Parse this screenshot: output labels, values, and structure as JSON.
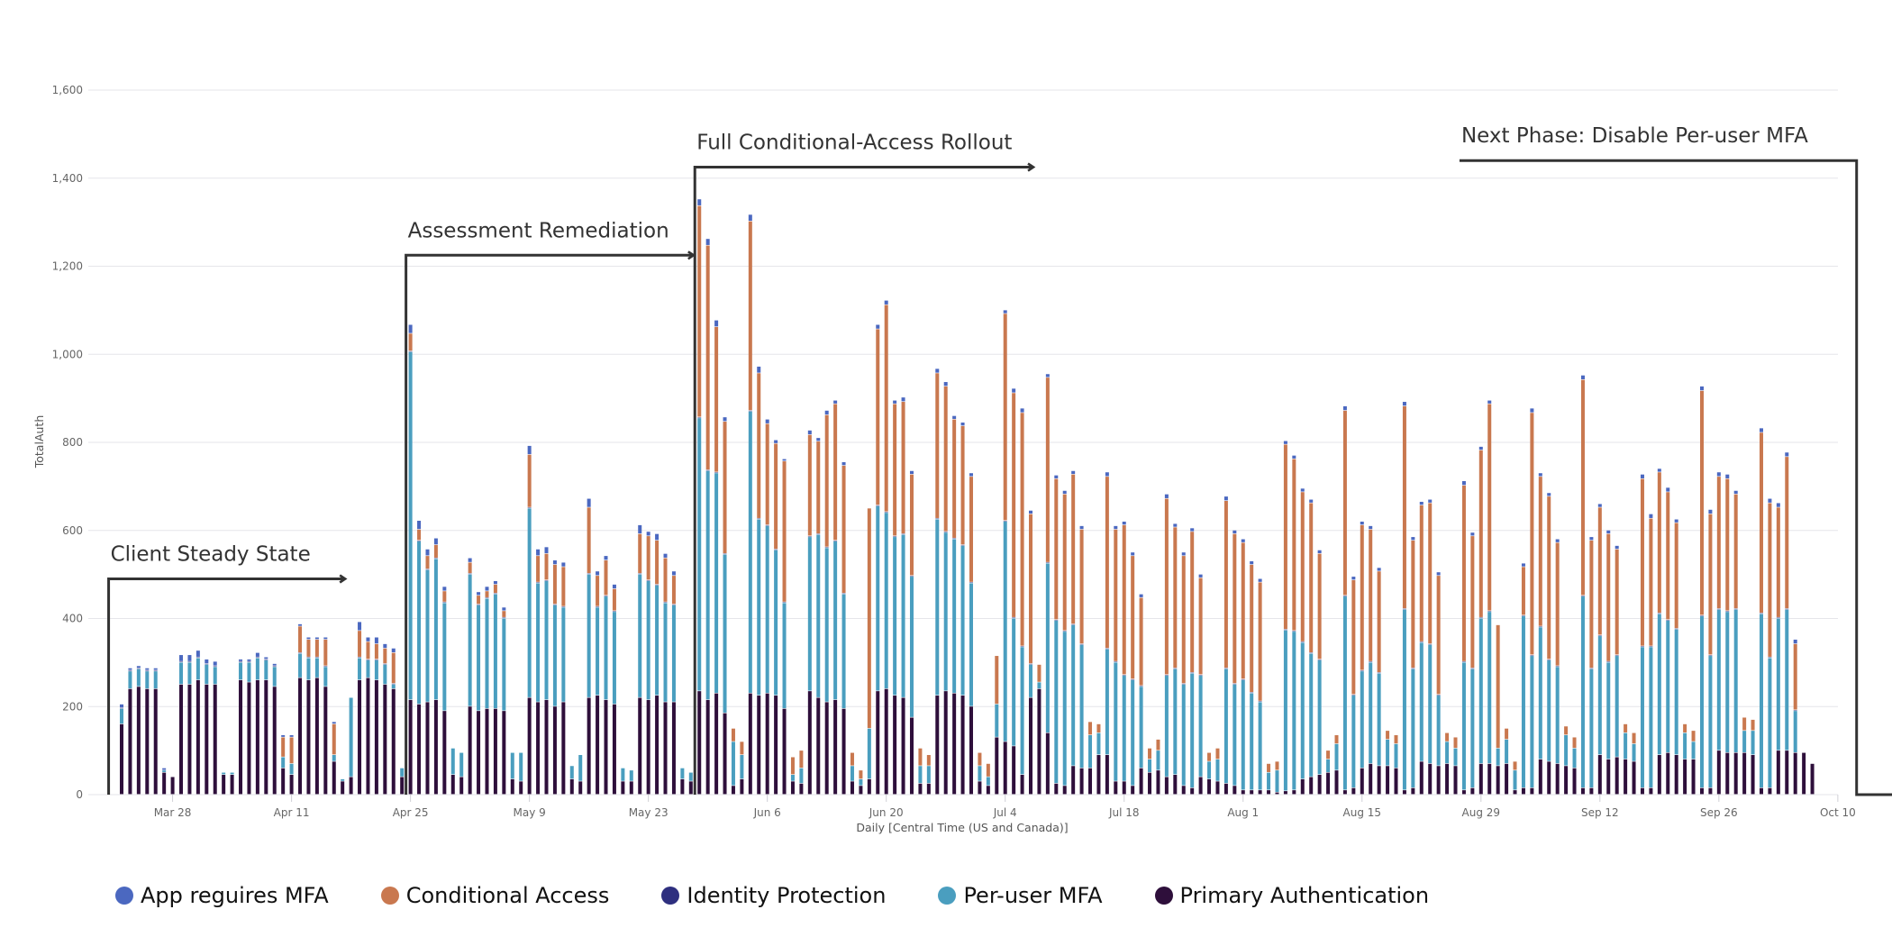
{
  "chart_data": {
    "type": "bar",
    "stacked": true,
    "title": "",
    "xlabel": "Daily [Central Time (US and Canada)]",
    "ylabel": "TotalAuth",
    "ylim": [
      0,
      1600
    ],
    "yticks": [
      0,
      200,
      400,
      600,
      800,
      1000,
      1200,
      1400,
      1600
    ],
    "ytick_labels": [
      "0",
      "200",
      "400",
      "600",
      "800",
      "1,000",
      "1,200",
      "1,400",
      "1,600"
    ],
    "grid": true,
    "start_date": "Mar 22",
    "xtick_labels": [
      "Mar 28",
      "Apr 11",
      "Apr 25",
      "May 9",
      "May 23",
      "Jun 6",
      "Jun 20",
      "Jul 4",
      "Jul 18",
      "Aug 1",
      "Aug 15",
      "Aug 29",
      "Sep 12",
      "Sep 26",
      "Oct 10"
    ],
    "xtick_day_index": [
      6,
      20,
      34,
      48,
      62,
      76,
      90,
      104,
      118,
      132,
      146,
      160,
      174,
      188,
      202
    ],
    "legend_position": "bottom-left",
    "series": [
      {
        "name": "Primary Authentication",
        "color": "#2e0f3b",
        "values": [
          160,
          240,
          245,
          240,
          240,
          50,
          40,
          250,
          250,
          260,
          250,
          250,
          45,
          45,
          260,
          255,
          260,
          260,
          245,
          60,
          45,
          265,
          260,
          265,
          245,
          75,
          30,
          40,
          260,
          265,
          260,
          250,
          240,
          40,
          215,
          205,
          210,
          215,
          190,
          45,
          40,
          200,
          190,
          195,
          195,
          190,
          35,
          30,
          220,
          210,
          215,
          200,
          210,
          35,
          30,
          220,
          225,
          215,
          205,
          30,
          30,
          220,
          215,
          225,
          210,
          210,
          35,
          30,
          235,
          215,
          230,
          185,
          20,
          35,
          230,
          225,
          230,
          225,
          195,
          30,
          25,
          235,
          220,
          210,
          215,
          195,
          30,
          20,
          35,
          235,
          240,
          225,
          220,
          175,
          25,
          25,
          225,
          235,
          230,
          225,
          200,
          30,
          20,
          130,
          120,
          110,
          45,
          220,
          240,
          140,
          25,
          20,
          65,
          60,
          60,
          90,
          90,
          30,
          30,
          20,
          60,
          50,
          55,
          40,
          45,
          20,
          15,
          40,
          35,
          30,
          25,
          20,
          10,
          10,
          10,
          10,
          5,
          8,
          10,
          35,
          40,
          45,
          50,
          55,
          10,
          15,
          60,
          70,
          65,
          65,
          60,
          10,
          15,
          75,
          70,
          65,
          70,
          65,
          10,
          15,
          70,
          70,
          65,
          70,
          10,
          15,
          15,
          80,
          75,
          70,
          65,
          60,
          15,
          15,
          90,
          80,
          85,
          80,
          75,
          15,
          15,
          90,
          95,
          90,
          80,
          80,
          15,
          15,
          100,
          95,
          95,
          95,
          90,
          15,
          15,
          100,
          100,
          95,
          95,
          70
        ]
      },
      {
        "name": "Per-user MFA",
        "color": "#4a9ebf",
        "values": [
          35,
          40,
          40,
          40,
          40,
          5,
          0,
          50,
          50,
          50,
          45,
          40,
          5,
          5,
          40,
          45,
          50,
          45,
          45,
          25,
          25,
          55,
          50,
          45,
          45,
          15,
          5,
          180,
          50,
          40,
          45,
          45,
          10,
          20,
          790,
          370,
          300,
          320,
          245,
          60,
          55,
          300,
          240,
          250,
          260,
          210,
          60,
          65,
          430,
          270,
          270,
          230,
          215,
          30,
          60,
          280,
          200,
          235,
          210,
          30,
          25,
          280,
          270,
          250,
          225,
          220,
          25,
          20,
          620,
          520,
          500,
          360,
          100,
          55,
          640,
          400,
          380,
          330,
          240,
          15,
          35,
          350,
          370,
          350,
          360,
          260,
          35,
          15,
          115,
          420,
          400,
          360,
          370,
          320,
          40,
          40,
          400,
          360,
          350,
          340,
          280,
          35,
          20,
          75,
          500,
          290,
          290,
          75,
          15,
          385,
          370,
          350,
          320,
          280,
          75,
          50,
          240,
          270,
          240,
          240,
          185,
          30,
          45,
          230,
          240,
          230,
          260,
          230,
          40,
          50,
          260,
          230,
          250,
          220,
          200,
          40,
          50,
          365,
          360,
          310,
          280,
          260,
          30,
          60,
          440,
          210,
          220,
          230,
          210,
          60,
          55,
          410,
          270,
          270,
          270,
          160,
          50,
          40,
          290,
          270,
          330,
          345,
          40,
          55,
          45,
          390,
          300,
          300,
          230,
          220,
          70,
          45,
          435,
          270,
          270,
          220,
          230,
          60,
          40,
          320,
          320,
          320,
          300,
          285,
          60,
          40,
          390,
          300,
          320,
          320,
          325,
          50,
          55,
          395,
          295,
          300,
          320,
          95
        ]
      },
      {
        "name": "Identity Protection",
        "color": "#2e2f7f",
        "values": [
          2,
          2,
          2,
          2,
          2,
          0,
          0,
          2,
          2,
          2,
          2,
          2,
          0,
          0,
          2,
          2,
          2,
          2,
          2,
          0,
          0,
          2,
          2,
          2,
          2,
          0,
          0,
          0,
          2,
          2,
          2,
          2,
          2,
          0,
          2,
          2,
          2,
          2,
          2,
          0,
          0,
          2,
          2,
          2,
          2,
          2,
          0,
          0,
          2,
          2,
          2,
          2,
          2,
          0,
          0,
          2,
          2,
          2,
          2,
          0,
          0,
          2,
          2,
          2,
          2,
          2,
          0,
          0,
          2,
          2,
          2,
          2,
          0,
          0,
          2,
          2,
          2,
          2,
          2,
          0,
          0,
          2,
          2,
          2,
          2,
          2,
          0,
          0,
          0,
          2,
          2,
          2,
          2,
          2,
          0,
          0,
          2,
          2,
          2,
          2,
          2,
          0,
          0,
          0,
          2,
          2,
          2,
          2,
          0,
          2,
          2,
          2,
          2,
          2,
          0,
          0,
          2,
          2,
          2,
          2,
          2,
          0,
          0,
          2,
          2,
          2,
          2,
          2,
          0,
          0,
          2,
          2,
          2,
          2,
          2,
          0,
          0,
          2,
          2,
          2,
          2,
          2,
          0,
          0,
          2,
          2,
          2,
          2,
          2,
          0,
          0,
          2,
          2,
          2,
          2,
          2,
          0,
          0,
          2,
          2,
          2,
          2,
          0,
          0,
          0,
          2,
          2,
          2,
          2,
          2,
          0,
          0,
          2,
          2,
          2,
          2,
          2,
          0,
          0,
          2,
          2,
          2,
          2,
          2,
          0,
          0,
          2,
          2,
          2,
          2,
          2,
          0,
          0,
          2,
          2,
          2,
          2,
          2
        ]
      },
      {
        "name": "Conditional Access",
        "color": "#c9784f",
        "values": [
          0,
          0,
          0,
          0,
          0,
          0,
          0,
          0,
          0,
          0,
          0,
          0,
          0,
          0,
          0,
          0,
          0,
          0,
          0,
          45,
          60,
          60,
          40,
          40,
          60,
          70,
          0,
          0,
          60,
          40,
          35,
          35,
          70,
          0,
          40,
          25,
          30,
          30,
          25,
          0,
          0,
          25,
          20,
          15,
          20,
          15,
          0,
          0,
          120,
          60,
          60,
          90,
          90,
          0,
          0,
          150,
          70,
          80,
          50,
          0,
          0,
          90,
          100,
          100,
          100,
          65,
          0,
          0,
          480,
          510,
          330,
          300,
          30,
          30,
          430,
          330,
          230,
          240,
          320,
          40,
          40,
          230,
          210,
          300,
          310,
          290,
          30,
          20,
          500,
          400,
          470,
          300,
          300,
          230,
          40,
          25,
          330,
          330,
          270,
          270,
          240,
          30,
          30,
          110,
          470,
          510,
          530,
          340,
          40,
          420,
          320,
          310,
          340,
          260,
          30,
          20,
          390,
          300,
          340,
          280,
          200,
          25,
          25,
          400,
          320,
          290,
          320,
          220,
          20,
          25,
          380,
          340,
          310,
          290,
          270,
          20,
          20,
          420,
          390,
          340,
          340,
          240,
          20,
          20,
          420,
          260,
          330,
          300,
          230,
          20,
          20,
          460,
          290,
          310,
          320,
          270,
          20,
          25,
          400,
          300,
          380,
          470,
          280,
          25,
          20,
          110,
          550,
          340,
          370,
          280,
          20,
          25,
          490,
          290,
          290,
          290,
          240,
          20,
          25,
          380,
          290,
          320,
          290,
          240,
          20,
          25,
          510,
          320,
          300,
          300,
          260,
          30,
          25,
          410,
          350,
          250,
          345,
          150
        ]
      },
      {
        "name": "App reguires MFA",
        "color": "#4b68c0",
        "values": [
          8,
          5,
          5,
          5,
          5,
          5,
          0,
          15,
          15,
          15,
          10,
          10,
          0,
          0,
          5,
          5,
          10,
          5,
          5,
          5,
          5,
          5,
          5,
          5,
          5,
          5,
          0,
          0,
          20,
          10,
          15,
          10,
          10,
          0,
          20,
          20,
          15,
          15,
          10,
          0,
          0,
          10,
          8,
          10,
          8,
          8,
          0,
          0,
          20,
          15,
          15,
          10,
          10,
          0,
          0,
          20,
          10,
          10,
          10,
          0,
          0,
          20,
          10,
          15,
          10,
          10,
          0,
          0,
          15,
          15,
          15,
          10,
          0,
          0,
          15,
          15,
          10,
          8,
          5,
          0,
          0,
          10,
          8,
          10,
          8,
          8,
          0,
          0,
          0,
          10,
          10,
          8,
          10,
          8,
          0,
          0,
          10,
          10,
          8,
          8,
          8,
          0,
          0,
          0,
          8,
          10,
          10,
          8,
          0,
          8,
          8,
          8,
          8,
          8,
          0,
          0,
          10,
          8,
          8,
          8,
          8,
          0,
          0,
          10,
          8,
          8,
          8,
          8,
          0,
          0,
          10,
          8,
          8,
          8,
          8,
          0,
          0,
          8,
          8,
          8,
          8,
          8,
          0,
          0,
          10,
          8,
          8,
          8,
          8,
          0,
          0,
          10,
          8,
          8,
          8,
          8,
          0,
          0,
          10,
          8,
          8,
          8,
          0,
          0,
          0,
          8,
          10,
          8,
          8,
          8,
          0,
          0,
          10,
          8,
          8,
          8,
          8,
          0,
          0,
          10,
          10,
          8,
          10,
          8,
          0,
          0,
          10,
          10,
          10,
          10,
          8,
          0,
          0,
          10,
          10,
          10,
          10,
          10
        ]
      }
    ],
    "annotations": [
      {
        "label": "Client Steady State",
        "start_day": -1,
        "end_day": 26,
        "level": 490
      },
      {
        "label": "Assessment Remediation",
        "start_day": 34,
        "end_day": 67,
        "level": 1225
      },
      {
        "label": "Full Conditional-Access Rollout",
        "start_day": 68,
        "end_day": 107,
        "level": 1425
      },
      {
        "label": "Next Phase: Disable Per-user MFA",
        "start_day": 158,
        "end_day": 204,
        "level": 1440
      }
    ]
  }
}
